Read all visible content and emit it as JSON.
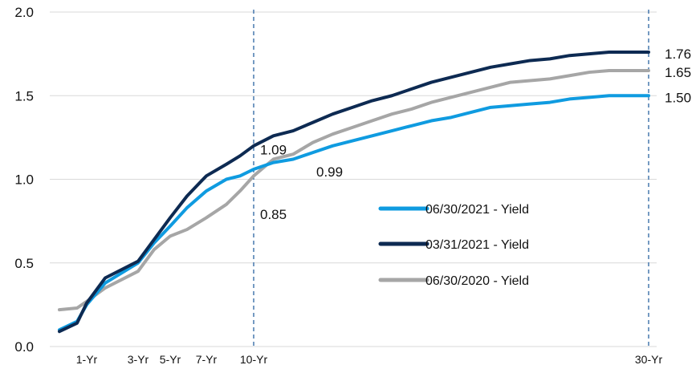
{
  "chart_data": {
    "type": "line",
    "title": "",
    "xlabel": "",
    "ylabel": "",
    "ylim": [
      0,
      2.0
    ],
    "yticks": [
      "0.0",
      "0.5",
      "1.0",
      "1.5",
      "2.0"
    ],
    "grid": "horizontal",
    "legend_position": "center-right",
    "x_tick_labels": [
      {
        "x": 1,
        "label": "1-Yr"
      },
      {
        "x": 3,
        "label": "3-Yr"
      },
      {
        "x": 5,
        "label": "5-Yr"
      },
      {
        "x": 7,
        "label": "7-Yr"
      },
      {
        "x": 10,
        "label": "10-Yr"
      },
      {
        "x": 30,
        "label": "30-Yr"
      }
    ],
    "reference_lines_x": [
      10,
      30
    ],
    "series": [
      {
        "name": "06/30/2021 - Yield",
        "color": "#0f9be0",
        "x": [
          0.25,
          0.5,
          1,
          2,
          3,
          4,
          5,
          6,
          7,
          8,
          9,
          10,
          11,
          12,
          13,
          14,
          15,
          16,
          17,
          18,
          19,
          20,
          21,
          22,
          23,
          24,
          25,
          26,
          27,
          28,
          29,
          30
        ],
        "y": [
          0.1,
          0.15,
          0.25,
          0.38,
          0.5,
          0.62,
          0.72,
          0.83,
          0.93,
          1.0,
          1.02,
          1.06,
          1.1,
          1.12,
          1.16,
          1.2,
          1.23,
          1.26,
          1.29,
          1.32,
          1.35,
          1.37,
          1.4,
          1.43,
          1.44,
          1.45,
          1.46,
          1.48,
          1.49,
          1.5,
          1.5,
          1.5
        ]
      },
      {
        "name": "03/31/2021 - Yield",
        "color": "#0d2a52",
        "x": [
          0.25,
          0.5,
          1,
          2,
          3,
          4,
          5,
          6,
          7,
          8,
          9,
          10,
          11,
          12,
          13,
          14,
          15,
          16,
          17,
          18,
          19,
          20,
          21,
          22,
          23,
          24,
          25,
          26,
          27,
          28,
          29,
          30
        ],
        "y": [
          0.09,
          0.14,
          0.26,
          0.41,
          0.51,
          0.64,
          0.77,
          0.9,
          1.02,
          1.09,
          1.14,
          1.2,
          1.26,
          1.29,
          1.34,
          1.39,
          1.43,
          1.47,
          1.5,
          1.54,
          1.58,
          1.61,
          1.64,
          1.67,
          1.69,
          1.71,
          1.72,
          1.74,
          1.75,
          1.76,
          1.76,
          1.76
        ]
      },
      {
        "name": "06/30/2020 - Yield",
        "color": "#a6a6a6",
        "x": [
          0.25,
          0.5,
          1,
          2,
          3,
          4,
          5,
          6,
          7,
          8,
          9,
          10,
          11,
          12,
          13,
          14,
          15,
          16,
          17,
          18,
          19,
          20,
          21,
          22,
          23,
          24,
          25,
          26,
          27,
          28,
          29,
          30
        ],
        "y": [
          0.22,
          0.23,
          0.27,
          0.35,
          0.45,
          0.58,
          0.66,
          0.7,
          0.77,
          0.85,
          0.93,
          1.02,
          1.12,
          1.15,
          1.22,
          1.27,
          1.31,
          1.35,
          1.39,
          1.42,
          1.46,
          1.49,
          1.52,
          1.55,
          1.58,
          1.59,
          1.6,
          1.62,
          1.64,
          1.65,
          1.65,
          1.65
        ]
      }
    ],
    "annotations": [
      {
        "text": "1.09",
        "x": 10,
        "y": 1.09
      },
      {
        "text": "0.99",
        "x": 13,
        "y": 0.99
      },
      {
        "text": "0.85",
        "x": 10,
        "y": 0.85
      },
      {
        "text": "1.76",
        "x": 30,
        "y": 1.76
      },
      {
        "text": "1.65",
        "x": 30,
        "y": 1.65
      },
      {
        "text": "1.50",
        "x": 30,
        "y": 1.5
      }
    ]
  }
}
